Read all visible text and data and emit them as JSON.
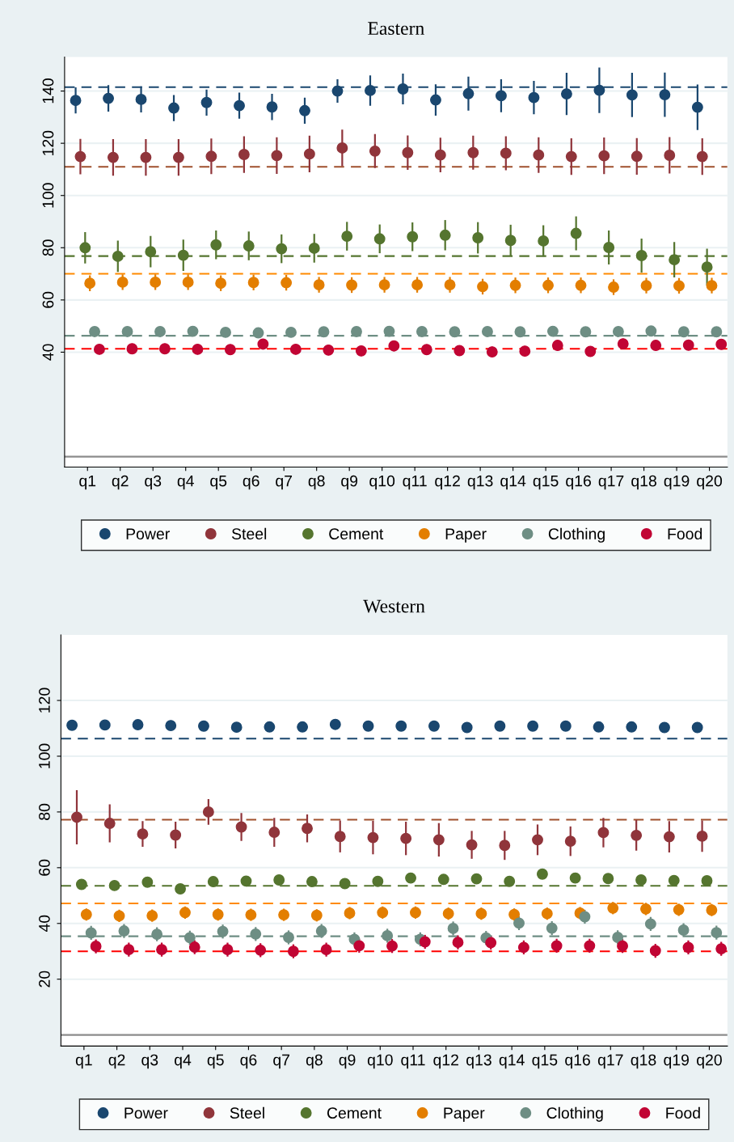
{
  "chart_data": [
    {
      "type": "scatter",
      "title": "Eastern",
      "categories": [
        "q1",
        "q2",
        "q3",
        "q4",
        "q5",
        "q6",
        "q7",
        "q8",
        "q9",
        "q10",
        "q11",
        "q12",
        "q13",
        "q14",
        "q15",
        "q16",
        "q17",
        "q18",
        "q19",
        "q20"
      ],
      "ylim": [
        -4,
        153
      ],
      "yticks": [
        40,
        60,
        80,
        100,
        120,
        140
      ],
      "grid": "y",
      "legend": "bottom",
      "marker": "circle",
      "series": [
        {
          "name": "Power",
          "color": "#1a476f",
          "values": [
            136.4,
            137.2,
            136.8,
            133.5,
            135.6,
            134.4,
            133.9,
            132.5,
            140,
            140.2,
            140.8,
            136.6,
            139,
            138.2,
            137.5,
            138.9,
            140.3,
            138.5,
            138.6,
            133.8
          ],
          "errors": [
            5,
            5.1,
            5,
            5,
            5,
            5,
            5,
            5,
            4.5,
            5.8,
            5.9,
            6,
            6.5,
            6.3,
            6.4,
            8.1,
            8.7,
            8.5,
            8.5,
            8.7
          ]
        },
        {
          "name": "Steel",
          "color": "#90353b",
          "values": [
            114.9,
            114.6,
            114.6,
            114.6,
            115,
            115.7,
            115.3,
            115.9,
            118.2,
            117,
            116.4,
            115.5,
            116.4,
            116.2,
            115.5,
            114.9,
            115.2,
            115,
            115.4,
            114.9
          ],
          "errors": [
            6.8,
            7,
            7,
            7,
            6.8,
            7,
            7,
            7,
            7,
            6.5,
            6.6,
            6.6,
            6.5,
            6.5,
            6.8,
            7,
            7,
            7,
            7,
            7
          ]
        },
        {
          "name": "Cement",
          "color": "#55752f",
          "values": [
            80,
            76.7,
            78.5,
            77.1,
            81.1,
            80.7,
            79.6,
            79.8,
            84.4,
            83.4,
            84.2,
            84.8,
            83.8,
            82.8,
            82.6,
            85.5,
            80.1,
            77,
            75.4,
            72.6
          ],
          "errors": [
            6,
            6,
            6,
            6,
            5.5,
            5.5,
            5.5,
            5.5,
            5.5,
            5.5,
            5.5,
            5.8,
            6,
            6,
            6,
            6.5,
            6.5,
            6.5,
            6.8,
            7
          ]
        },
        {
          "name": "Paper",
          "color": "#e37e00",
          "values": [
            66.4,
            66.8,
            66.8,
            66.8,
            66.4,
            66.7,
            66.6,
            65.8,
            65.7,
            65.8,
            65.8,
            65.8,
            65.1,
            65.6,
            65.6,
            65.6,
            64.9,
            65.5,
            65.4,
            65.5
          ],
          "errors": [
            3,
            3,
            3,
            3,
            3,
            3,
            3,
            3,
            3,
            3,
            3,
            3,
            3,
            3,
            3,
            3,
            3,
            3,
            3,
            3
          ]
        },
        {
          "name": "Clothing",
          "color": "#6e8e84",
          "values": [
            47.9,
            47.9,
            47.9,
            48,
            47.6,
            47.4,
            47.6,
            47.8,
            47.9,
            48,
            47.9,
            47.8,
            47.9,
            47.8,
            48,
            47.8,
            47.9,
            48.1,
            47.8,
            47.8
          ]
        },
        {
          "name": "Food",
          "color": "#c10534",
          "values": [
            41.1,
            41.3,
            41.3,
            41.1,
            41,
            43.1,
            41.1,
            40.8,
            40.5,
            42.4,
            41,
            40.6,
            40.1,
            40.4,
            42.6,
            40.3,
            43.2,
            42.6,
            42.7,
            43
          ],
          "errors": [
            2,
            2,
            2,
            2,
            2,
            2,
            2,
            2,
            2,
            2,
            2,
            2,
            2,
            2,
            2,
            2,
            2,
            2,
            2,
            2
          ]
        }
      ],
      "ref_lines": [
        {
          "axis": "y",
          "value": 141.5,
          "color": "#1a476f",
          "line_style": "dashed"
        },
        {
          "axis": "y",
          "value": 111,
          "color": "#a0502d",
          "line_style": "dashed"
        },
        {
          "axis": "y",
          "value": 76.8,
          "color": "#55752f",
          "line_style": "dashed"
        },
        {
          "axis": "y",
          "value": 70,
          "color": "#ff8a00",
          "line_style": "dashed"
        },
        {
          "axis": "y",
          "value": 46.3,
          "color": "#6e8e84",
          "line_style": "dashed"
        },
        {
          "axis": "y",
          "value": 41.3,
          "color": "#ff0000",
          "line_style": "dashed"
        },
        {
          "axis": "y",
          "value": 0,
          "color": "#8c8c8c",
          "line_style": "solid"
        }
      ]
    },
    {
      "type": "scatter",
      "title": "Western",
      "categories": [
        "q1",
        "q2",
        "q3",
        "q4",
        "q5",
        "q6",
        "q7",
        "q8",
        "q9",
        "q10",
        "q11",
        "q12",
        "q13",
        "q14",
        "q15",
        "q16",
        "q17",
        "q18",
        "q19",
        "q20"
      ],
      "ylim": [
        -4,
        143.5
      ],
      "yticks": [
        20,
        40,
        60,
        80,
        100,
        120
      ],
      "grid": "y",
      "legend": "bottom",
      "marker": "circle",
      "series": [
        {
          "name": "Power",
          "color": "#1a476f",
          "values": [
            111.1,
            111.2,
            111.3,
            111,
            110.8,
            110.4,
            110.5,
            110.5,
            111.4,
            110.8,
            110.8,
            110.8,
            110.3,
            110.8,
            110.8,
            110.8,
            110.5,
            110.5,
            110.3,
            110.3
          ],
          "errors": [
            1.2,
            1.2,
            1.2,
            1.2,
            1.2,
            1.2,
            1.2,
            1.2,
            1.2,
            1.2,
            1.2,
            1.2,
            1.2,
            1.2,
            1.2,
            1.2,
            1.2,
            1.2,
            1.2,
            1.2
          ]
        },
        {
          "name": "Steel",
          "color": "#90353b",
          "values": [
            78.1,
            75.9,
            72.1,
            71.7,
            80,
            74.6,
            72.7,
            74.1,
            71.2,
            70.8,
            70.5,
            70,
            68.2,
            68,
            70,
            69.5,
            72.6,
            71.6,
            71.1,
            71.3
          ],
          "errors": [
            9.7,
            6.8,
            4.6,
            4.8,
            4.6,
            5,
            5.2,
            5,
            5.7,
            6,
            6,
            6,
            5,
            5.2,
            5.5,
            5.3,
            5.3,
            5.5,
            5.6,
            5.6
          ]
        },
        {
          "name": "Cement",
          "color": "#55752f",
          "values": [
            54,
            53.6,
            54.8,
            52.4,
            55,
            55.2,
            55.6,
            55,
            54.3,
            55.1,
            56.3,
            55.8,
            56,
            55.1,
            57.7,
            56.3,
            56.1,
            55.6,
            55.4,
            55.3
          ],
          "errors": [
            1.5,
            1.5,
            1.5,
            1.5,
            1.5,
            1.5,
            1.5,
            1.5,
            1.5,
            1.5,
            1.5,
            1.5,
            1.5,
            1.5,
            1.5,
            1.5,
            1.5,
            1.5,
            1.5,
            1.5
          ]
        },
        {
          "name": "Paper",
          "color": "#e37e00",
          "values": [
            43.2,
            42.7,
            42.8,
            43.9,
            43.2,
            43.1,
            43.1,
            42.9,
            43.7,
            43.9,
            43.9,
            43.5,
            43.5,
            43.2,
            43.5,
            43.7,
            45.5,
            45.2,
            44.9,
            44.8
          ],
          "errors": [
            2.2,
            2.2,
            2.2,
            2.2,
            2.2,
            2.2,
            2.2,
            2.2,
            2.2,
            2.2,
            2.2,
            2.2,
            2.2,
            2.2,
            2.2,
            2.2,
            2.2,
            2.2,
            2.2,
            2.2
          ]
        },
        {
          "name": "Clothing",
          "color": "#6e8e84",
          "values": [
            36.6,
            37.3,
            36.1,
            34.9,
            37.1,
            36.2,
            35,
            37.3,
            34.3,
            35.6,
            34.3,
            38.2,
            34.8,
            40.1,
            38.3,
            42.4,
            35,
            39.8,
            37.6,
            36.7
          ],
          "errors": [
            2.5,
            2.5,
            2.5,
            2.5,
            2.5,
            2.5,
            2.5,
            2.5,
            2.5,
            2.5,
            2.5,
            2.5,
            2.5,
            2.5,
            2.5,
            2.5,
            2.5,
            2.5,
            2.5,
            2.5
          ]
        },
        {
          "name": "Food",
          "color": "#c10534",
          "values": [
            31.8,
            30.6,
            30.6,
            31.5,
            30.6,
            30.4,
            30,
            30.6,
            32,
            31.9,
            33.4,
            33.2,
            33.1,
            31.4,
            32,
            32,
            31.9,
            30.2,
            31.4,
            30.9
          ],
          "errors": [
            2.5,
            2.5,
            2.5,
            2.5,
            2.5,
            2.5,
            2.5,
            2.5,
            2.5,
            2.5,
            2.5,
            2.5,
            2.5,
            2.5,
            2.5,
            2.5,
            2.5,
            2.5,
            2.5,
            2.5
          ]
        }
      ],
      "ref_lines": [
        {
          "axis": "y",
          "value": 106.3,
          "color": "#1a476f",
          "line_style": "dashed"
        },
        {
          "axis": "y",
          "value": 77.2,
          "color": "#a0502d",
          "line_style": "dashed"
        },
        {
          "axis": "y",
          "value": 53.5,
          "color": "#55752f",
          "line_style": "dashed"
        },
        {
          "axis": "y",
          "value": 47.2,
          "color": "#ff8a00",
          "line_style": "dashed"
        },
        {
          "axis": "y",
          "value": 35.4,
          "color": "#6e8e84",
          "line_style": "dashed"
        },
        {
          "axis": "y",
          "value": 30,
          "color": "#ff0000",
          "line_style": "dashed"
        },
        {
          "axis": "y",
          "value": 0,
          "color": "#8c8c8c",
          "line_style": "solid"
        }
      ]
    }
  ]
}
